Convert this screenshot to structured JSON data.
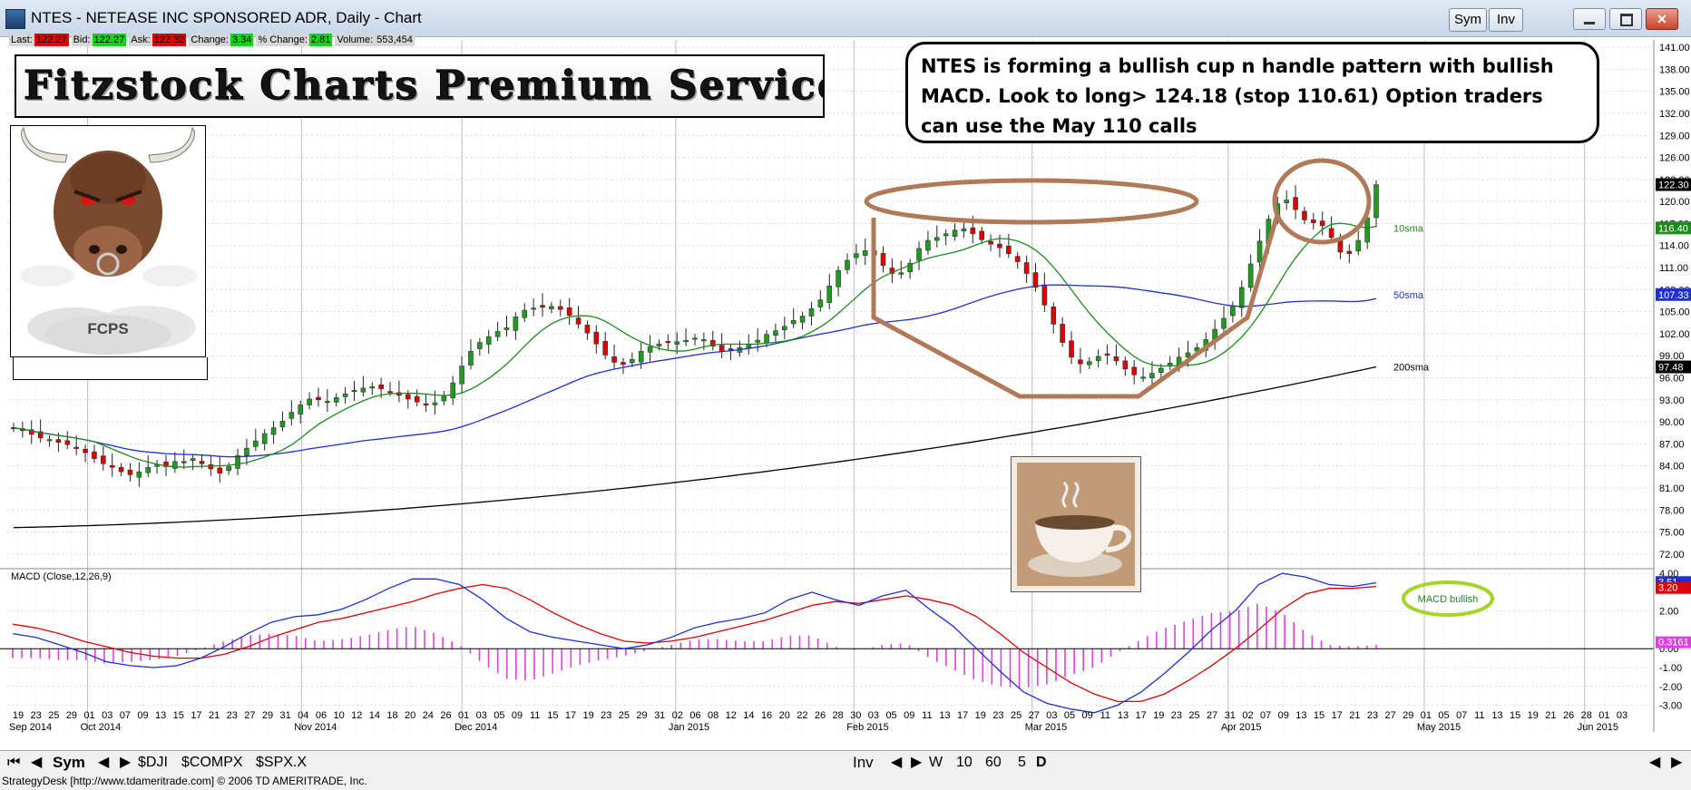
{
  "window": {
    "title": "NTES - NETEASE INC SPONSORED ADR, Daily - Chart",
    "buttons": [
      "Sym",
      "Inv"
    ]
  },
  "quote": {
    "last_label": "Last:",
    "last": "122.27",
    "bid_label": "Bid:",
    "bid": "122.27",
    "ask_label": "Ask:",
    "ask": "122.32",
    "change_label": "Change:",
    "change": "3.34",
    "pct_label": "% Change:",
    "pct": "2.81",
    "volume_label": "Volume:",
    "volume": "553,454"
  },
  "banner": {
    "text": "Fitzstock Charts Premium Service"
  },
  "logo": {
    "caption": "FCPS"
  },
  "note": {
    "text": "NTES is forming a bullish cup n handle pattern with bullish MACD.  Look to long> 124.18 (stop 110.61)  Option traders can use the May 110 calls"
  },
  "colors": {
    "up": "#1f9b1f",
    "down": "#e00000",
    "sma10": "#1d8a1d",
    "sma50": "#1f2fd6",
    "sma200": "#000000",
    "macd": "#1f2fd6",
    "signal": "#e00000",
    "histogram": "#e040e0",
    "annotation": "#b07a58",
    "macd_oval": "#a8d42a"
  },
  "chart_data": [
    {
      "type": "candlestick",
      "title": "",
      "ylim": [
        70.5,
        142
      ],
      "y_ticks": [
        "141.00",
        "138.00",
        "135.00",
        "132.00",
        "129.00",
        "126.00",
        "123.00",
        "120.00",
        "117.00",
        "114.00",
        "111.00",
        "108.00",
        "105.00",
        "102.00",
        "99.00",
        "96.00",
        "93.00",
        "90.00",
        "87.00",
        "84.00",
        "81.00",
        "78.00",
        "75.00",
        "72.00"
      ],
      "x_day_labels": [
        "19",
        "23",
        "25",
        "29",
        "01",
        "03",
        "07",
        "09",
        "13",
        "15",
        "17",
        "21",
        "23",
        "27",
        "29",
        "31",
        "04",
        "06",
        "10",
        "12",
        "14",
        "18",
        "20",
        "24",
        "26",
        "01",
        "03",
        "05",
        "09",
        "11",
        "15",
        "17",
        "19",
        "23",
        "25",
        "29",
        "31",
        "02",
        "06",
        "08",
        "12",
        "14",
        "16",
        "20",
        "22",
        "26",
        "28",
        "30",
        "03",
        "05",
        "09",
        "11",
        "13",
        "17",
        "19",
        "23",
        "25",
        "27",
        "03",
        "05",
        "09",
        "11",
        "13",
        "17",
        "19",
        "23",
        "25",
        "27",
        "31",
        "02",
        "07",
        "09",
        "13",
        "15",
        "17",
        "21",
        "23",
        "27",
        "29",
        "01",
        "05",
        "07",
        "11",
        "13",
        "15",
        "19",
        "21",
        "26",
        "28",
        "01",
        "03"
      ],
      "month_labels": [
        "Sep 2014",
        "Oct 2014",
        "Nov 2014",
        "Dec 2014",
        "Jan 2015",
        "Feb 2015",
        "Mar 2015",
        "Apr 2015",
        "May 2015",
        "Jun 2015"
      ],
      "date_range": [
        "2014-09-17",
        "2015-04-24"
      ],
      "extends_to": "2015-06-03",
      "closes": [
        89.2,
        88.8,
        88.3,
        87.8,
        87.6,
        87.2,
        86.9,
        86.4,
        85.8,
        85.0,
        84.3,
        83.8,
        83.2,
        82.8,
        83.2,
        83.8,
        84.2,
        83.9,
        84.6,
        84.5,
        85.0,
        84.3,
        83.6,
        83.0,
        83.9,
        85.4,
        86.4,
        87.4,
        88.4,
        89.2,
        90.1,
        91.3,
        92.3,
        93.1,
        93.0,
        92.8,
        93.3,
        93.8,
        94.3,
        94.6,
        94.8,
        94.5,
        94.1,
        93.6,
        93.1,
        92.7,
        92.3,
        92.6,
        93.6,
        95.3,
        97.6,
        99.6,
        100.8,
        101.6,
        102.3,
        102.8,
        104.3,
        105.2,
        105.5,
        105.6,
        105.7,
        105.3,
        104.5,
        103.3,
        102.1,
        100.6,
        99.1,
        98.1,
        97.8,
        98.5,
        99.6,
        100.2,
        100.6,
        100.8,
        100.9,
        101.1,
        101.4,
        101.2,
        100.3,
        99.6,
        99.7,
        100.1,
        100.6,
        101.1,
        101.9,
        102.4,
        103.0,
        103.8,
        104.4,
        105.4,
        106.6,
        108.5,
        110.6,
        112.0,
        112.9,
        113.3,
        112.7,
        111.3,
        110.2,
        110.3,
        111.6,
        113.6,
        114.7,
        115.1,
        115.6,
        116.1,
        116.3,
        115.6,
        114.8,
        114.2,
        113.7,
        112.9,
        111.8,
        110.2,
        108.3,
        105.9,
        103.3,
        100.8,
        98.8,
        97.9,
        98.2,
        98.9,
        99.1,
        98.3,
        97.2,
        96.4,
        96.1,
        96.6,
        97.3,
        98.0,
        98.8,
        99.4,
        100.1,
        101.2,
        102.6,
        104.1,
        105.8,
        108.3,
        111.5,
        114.6,
        117.6,
        119.7,
        120.2,
        118.9,
        117.5,
        117.1,
        116.7,
        115.1,
        113.1,
        112.9,
        114.7,
        117.8,
        122.3
      ],
      "up_down": "mixed, red = close < open, green = close > open"
    },
    {
      "type": "line",
      "series": [
        {
          "name": "10sma",
          "last": "116.40"
        },
        {
          "name": "50sma",
          "last": "107.33"
        },
        {
          "name": "200sma",
          "last": "97.48"
        }
      ],
      "last_price_label": "122.30"
    },
    {
      "type": "line",
      "title": "MACD (Close,12,26,9)",
      "ylim": [
        -3.6,
        4.1
      ],
      "y_ticks": [
        "4.00",
        "2.00",
        "0.00",
        "-1.00",
        "-2.00",
        "-3.00"
      ],
      "series": [
        {
          "name": "MACD",
          "last": "3.51",
          "values": [
            0.8,
            0.6,
            0.2,
            -0.2,
            -0.7,
            -0.9,
            -1.0,
            -0.9,
            -0.5,
            0.1,
            0.8,
            1.4,
            1.7,
            1.8,
            2.1,
            2.6,
            3.2,
            3.7,
            3.7,
            3.4,
            2.6,
            1.6,
            0.9,
            0.6,
            0.4,
            0.2,
            0.0,
            0.2,
            0.6,
            1.1,
            1.4,
            1.6,
            1.9,
            2.6,
            3.0,
            2.6,
            2.3,
            2.8,
            3.1,
            2.1,
            1.2,
            0.0,
            -1.2,
            -2.3,
            -2.9,
            -3.2,
            -3.4,
            -3.0,
            -2.3,
            -1.3,
            -0.2,
            1.0,
            2.0,
            3.4,
            4.0,
            3.8,
            3.4,
            3.3,
            3.5
          ]
        },
        {
          "name": "Signal",
          "last": "3.20",
          "values": [
            1.3,
            1.1,
            0.8,
            0.4,
            0.1,
            -0.2,
            -0.4,
            -0.5,
            -0.5,
            -0.3,
            0.1,
            0.6,
            1.0,
            1.4,
            1.6,
            1.9,
            2.2,
            2.5,
            2.9,
            3.2,
            3.4,
            3.2,
            2.6,
            1.9,
            1.3,
            0.8,
            0.4,
            0.3,
            0.4,
            0.6,
            0.9,
            1.2,
            1.5,
            1.9,
            2.3,
            2.5,
            2.4,
            2.6,
            2.8,
            2.6,
            2.3,
            1.7,
            0.8,
            -0.2,
            -1.0,
            -1.8,
            -2.4,
            -2.8,
            -2.8,
            -2.4,
            -1.7,
            -0.9,
            0.0,
            1.0,
            2.1,
            2.9,
            3.2,
            3.2,
            3.3
          ]
        },
        {
          "name": "Histogram",
          "last": "0.3161"
        }
      ],
      "annotation": "MACD bullish"
    }
  ],
  "tabs": {
    "left_nav": [
      "⏮",
      "◀",
      "▶"
    ],
    "sym_label": "Sym",
    "symbols": [
      "$DJI",
      "$COMPX",
      "$SPX.X"
    ],
    "inv_label": "Inv",
    "periods": [
      "W",
      "10",
      "60",
      "5",
      "D"
    ]
  },
  "status": {
    "text": "StrategyDesk [http://www.tdameritrade.com] © 2006 TD AMERITRADE, Inc."
  }
}
